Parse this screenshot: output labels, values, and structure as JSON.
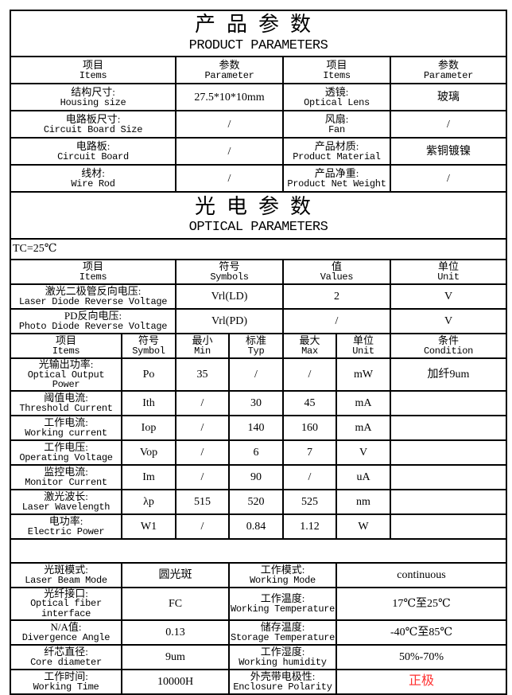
{
  "product": {
    "title_cn": "产品参数",
    "title_en": "PRODUCT PARAMETERS",
    "header": [
      {
        "cn": "项目",
        "en": "Items"
      },
      {
        "cn": "参数",
        "en": "Parameter"
      },
      {
        "cn": "项目",
        "en": "Items"
      },
      {
        "cn": "参数",
        "en": "Parameter"
      }
    ],
    "rows": [
      [
        {
          "cn": "结构尺寸:",
          "en": "Housing size"
        },
        {
          "v": "27.5*10*10mm"
        },
        {
          "cn": "透镜:",
          "en": "Optical Lens"
        },
        {
          "v": "玻璃"
        }
      ],
      [
        {
          "cn": "电路板尺寸:",
          "en": "Circuit Board Size"
        },
        {
          "v": "/"
        },
        {
          "cn": "风扇:",
          "en": "Fan"
        },
        {
          "v": "/"
        }
      ],
      [
        {
          "cn": "电路板:",
          "en": "Circuit Board"
        },
        {
          "v": "/"
        },
        {
          "cn": "产品材质:",
          "en": "Product Material"
        },
        {
          "v": "紫铜镀镍"
        }
      ],
      [
        {
          "cn": "线材:",
          "en": "Wire Rod"
        },
        {
          "v": "/"
        },
        {
          "cn": "产品净重:",
          "en": "Product Net Weight"
        },
        {
          "v": "/"
        }
      ]
    ]
  },
  "optical": {
    "title_cn": "光电参数",
    "title_en": "OPTICAL PARAMETERS",
    "tc": "TC=25℃",
    "header": [
      {
        "cn": "项目",
        "en": "Items"
      },
      {
        "cn": "符号",
        "en": "Symbols"
      },
      {
        "cn": "值",
        "en": "Values"
      },
      {
        "cn": "单位",
        "en": "Unit"
      }
    ],
    "rows": [
      [
        {
          "cn": "激光二极管反向电压:",
          "en": "Laser Diode Reverse Voltage"
        },
        {
          "v": "Vrl(LD)"
        },
        {
          "v": "2"
        },
        {
          "v": "V"
        }
      ],
      [
        {
          "cn": "PD反向电压:",
          "en": "Photo Diode Reverse Voltage"
        },
        {
          "v": "Vrl(PD)"
        },
        {
          "v": "/"
        },
        {
          "v": "V"
        }
      ]
    ],
    "header2": [
      {
        "cn": "项目",
        "en": "Items"
      },
      {
        "cn": "符号",
        "en": "Symbol"
      },
      {
        "cn": "最小",
        "en": "Min"
      },
      {
        "cn": "标准",
        "en": "Typ"
      },
      {
        "cn": "最大",
        "en": "Max"
      },
      {
        "cn": "单位",
        "en": "Unit"
      },
      {
        "cn": "条件",
        "en": "Condition"
      }
    ],
    "data": [
      [
        {
          "cn": "光输出功率:",
          "en": "Optical Output Power"
        },
        {
          "v": "Po"
        },
        {
          "v": "35"
        },
        {
          "v": "/"
        },
        {
          "v": "/"
        },
        {
          "v": "mW"
        },
        {
          "v": "加纤9um"
        }
      ],
      [
        {
          "cn": "阈值电流:",
          "en": "Threshold Current"
        },
        {
          "v": "Ith"
        },
        {
          "v": "/"
        },
        {
          "v": "30"
        },
        {
          "v": "45"
        },
        {
          "v": "mA"
        },
        {
          "v": ""
        }
      ],
      [
        {
          "cn": "工作电流:",
          "en": "Working current"
        },
        {
          "v": "Iop"
        },
        {
          "v": "/"
        },
        {
          "v": "140"
        },
        {
          "v": "160"
        },
        {
          "v": "mA"
        },
        {
          "v": ""
        }
      ],
      [
        {
          "cn": "工作电压:",
          "en": "Operating Voltage"
        },
        {
          "v": "Vop"
        },
        {
          "v": "/"
        },
        {
          "v": "6"
        },
        {
          "v": "7"
        },
        {
          "v": "V"
        },
        {
          "v": ""
        }
      ],
      [
        {
          "cn": "监控电流:",
          "en": "Monitor Current"
        },
        {
          "v": "Im"
        },
        {
          "v": "/"
        },
        {
          "v": "90"
        },
        {
          "v": "/"
        },
        {
          "v": "uA"
        },
        {
          "v": ""
        }
      ],
      [
        {
          "cn": "激光波长:",
          "en": "Laser Wavelength"
        },
        {
          "v": "λp"
        },
        {
          "v": "515"
        },
        {
          "v": "520"
        },
        {
          "v": "525"
        },
        {
          "v": "nm"
        },
        {
          "v": ""
        }
      ],
      [
        {
          "cn": "电功率:",
          "en": "Electric Power"
        },
        {
          "v": "W1"
        },
        {
          "v": "/"
        },
        {
          "v": "0.84"
        },
        {
          "v": "1.12"
        },
        {
          "v": "W"
        },
        {
          "v": ""
        }
      ]
    ]
  },
  "other": {
    "rows": [
      [
        {
          "cn": "光斑模式:",
          "en": "Laser Beam Mode"
        },
        {
          "v": "圆光斑"
        },
        {
          "cn": "工作模式:",
          "en": "Working Mode"
        },
        {
          "v": "continuous"
        }
      ],
      [
        {
          "cn": "光纤接口:",
          "en": "Optical fiber interface"
        },
        {
          "v": "FC"
        },
        {
          "cn": "工作温度:",
          "en": "Working Temperature"
        },
        {
          "v": "17℃至25℃"
        }
      ],
      [
        {
          "cn": "N/A值:",
          "en": "Divergence Angle"
        },
        {
          "v": "0.13"
        },
        {
          "cn": "储存温度:",
          "en": "Storage Temperature"
        },
        {
          "v": "-40℃至85℃"
        }
      ],
      [
        {
          "cn": "纤芯直径:",
          "en": "Core diameter"
        },
        {
          "v": "9um"
        },
        {
          "cn": "工作湿度:",
          "en": "Working humidity"
        },
        {
          "v": "50%-70%"
        }
      ],
      [
        {
          "cn": "工作时间:",
          "en": "Working Time"
        },
        {
          "v": "10000H"
        },
        {
          "cn": "外壳带电极性:",
          "en": "Enclosure Polarity"
        },
        {
          "v": "正极",
          "color": "#ff3030"
        }
      ]
    ]
  }
}
